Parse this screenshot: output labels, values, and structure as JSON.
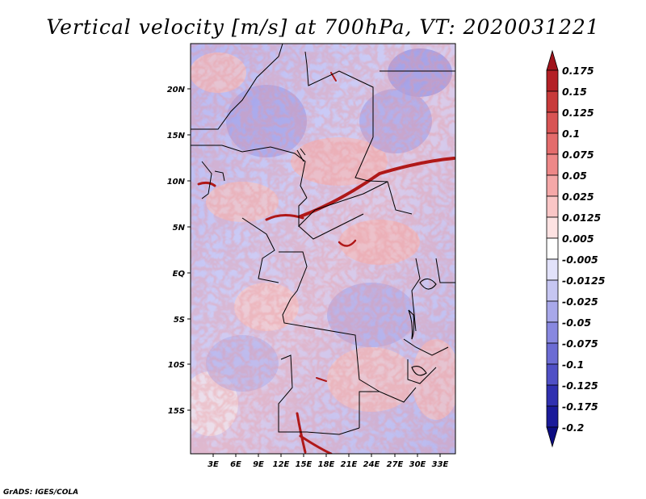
{
  "title": "Vertical velocity [m/s] at 700hPa, VT: 2020031221",
  "credit": "GrADS: IGES/COLA",
  "map": {
    "lat_labels": [
      "20N",
      "15N",
      "10N",
      "5N",
      "EQ",
      "5S",
      "10S",
      "15S"
    ],
    "lon_labels": [
      "3E",
      "6E",
      "9E",
      "12E",
      "15E",
      "18E",
      "21E",
      "24E",
      "27E",
      "30E",
      "33E"
    ]
  },
  "colorbar": {
    "labels": [
      "0.175",
      "0.15",
      "0.125",
      "0.1",
      "0.075",
      "0.05",
      "0.025",
      "0.0125",
      "0.005",
      "-0.005",
      "-0.0125",
      "-0.025",
      "-0.05",
      "-0.075",
      "-0.1",
      "-0.125",
      "-0.175",
      "-0.2"
    ],
    "colors": [
      "#a0141c",
      "#b42026",
      "#c83a3a",
      "#d85454",
      "#e46c6c",
      "#ee8888",
      "#f5a8a8",
      "#fac6c6",
      "#fde2e2",
      "#ffffff",
      "#e2e2fa",
      "#c6c6f2",
      "#a8a8ea",
      "#8888e0",
      "#6c6cd4",
      "#5050c6",
      "#3030b0",
      "#1a1a9a",
      "#0c0c82"
    ]
  },
  "colors": {
    "field_positive": "#e07070",
    "field_negative": "#7070d8",
    "strong_ascent": "#b01818",
    "border": "#000000"
  }
}
